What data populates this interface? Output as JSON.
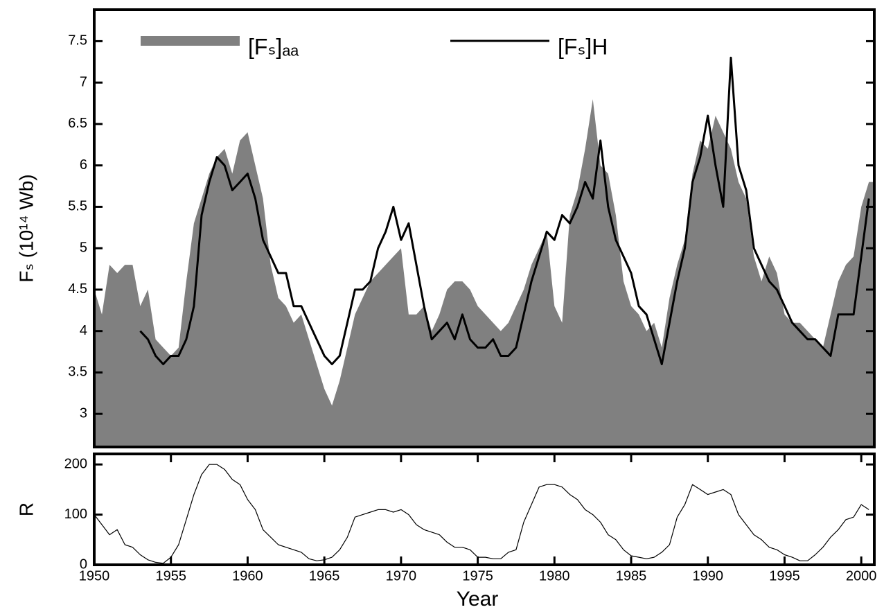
{
  "chart_data": [
    {
      "type": "area",
      "y_label": "Fₛ (10¹⁴ Wb)",
      "x": [
        1950,
        1950.5,
        1951,
        1951.5,
        1952,
        1952.5,
        1953,
        1953.5,
        1954,
        1954.5,
        1955,
        1955.5,
        1956,
        1956.5,
        1957,
        1957.5,
        1958,
        1958.5,
        1959,
        1959.5,
        1960,
        1960.5,
        1961,
        1961.5,
        1962,
        1962.5,
        1963,
        1963.5,
        1964,
        1964.5,
        1965,
        1965.5,
        1966,
        1966.5,
        1967,
        1967.5,
        1968,
        1968.5,
        1969,
        1969.5,
        1970,
        1970.5,
        1971,
        1971.5,
        1972,
        1972.5,
        1973,
        1973.5,
        1974,
        1974.5,
        1975,
        1975.5,
        1976,
        1976.5,
        1977,
        1977.5,
        1978,
        1978.5,
        1979,
        1979.5,
        1980,
        1980.5,
        1981,
        1981.5,
        1982,
        1982.5,
        1983,
        1983.5,
        1984,
        1984.5,
        1985,
        1985.5,
        1986,
        1986.5,
        1987,
        1987.5,
        1988,
        1988.5,
        1989,
        1989.5,
        1990,
        1990.5,
        1991,
        1991.5,
        1992,
        1992.5,
        1993,
        1993.5,
        1994,
        1994.5,
        1995,
        1995.5,
        1996,
        1996.5,
        1997,
        1997.5,
        1998,
        1998.5,
        1999,
        1999.5,
        2000,
        2000.5
      ],
      "series": [
        {
          "name": "[Fₛ]ₐₐ",
          "color": "#808080",
          "style": "area",
          "values": [
            4.5,
            4.2,
            4.8,
            4.7,
            4.8,
            4.8,
            4.3,
            4.5,
            3.9,
            3.8,
            3.7,
            3.8,
            4.6,
            5.3,
            5.6,
            5.9,
            6.1,
            6.2,
            5.9,
            6.3,
            6.4,
            6.0,
            5.6,
            4.8,
            4.4,
            4.3,
            4.1,
            4.2,
            3.9,
            3.6,
            3.3,
            3.1,
            3.4,
            3.8,
            4.2,
            4.4,
            4.6,
            4.7,
            4.8,
            4.9,
            5.0,
            4.2,
            4.2,
            4.3,
            4.0,
            4.2,
            4.5,
            4.6,
            4.6,
            4.5,
            4.3,
            4.2,
            4.1,
            4.0,
            4.1,
            4.3,
            4.5,
            4.8,
            5.0,
            5.2,
            4.3,
            4.1,
            5.4,
            5.7,
            6.2,
            6.8,
            6.0,
            5.9,
            5.4,
            4.6,
            4.3,
            4.2,
            4.0,
            4.1,
            3.8,
            4.4,
            4.8,
            5.1,
            5.9,
            6.3,
            6.2,
            6.6,
            6.4,
            6.2,
            5.8,
            5.6,
            4.9,
            4.6,
            4.9,
            4.7,
            4.2,
            4.1,
            4.1,
            4.0,
            3.9,
            3.8,
            4.2,
            4.6,
            4.8,
            4.9,
            5.5,
            5.8
          ]
        },
        {
          "name": "[Fₛ]H",
          "color": "#000000",
          "style": "line",
          "values": [
            null,
            null,
            null,
            null,
            null,
            null,
            4.0,
            3.9,
            3.7,
            3.6,
            3.7,
            3.7,
            3.9,
            4.3,
            5.4,
            5.8,
            6.1,
            6.0,
            5.7,
            5.8,
            5.9,
            5.6,
            5.1,
            4.9,
            4.7,
            4.7,
            4.3,
            4.3,
            4.1,
            3.9,
            3.7,
            3.6,
            3.7,
            4.1,
            4.5,
            4.5,
            4.6,
            5.0,
            5.2,
            5.5,
            5.1,
            5.3,
            4.8,
            4.3,
            3.9,
            4.0,
            4.1,
            3.9,
            4.2,
            3.9,
            3.8,
            3.8,
            3.9,
            3.7,
            3.7,
            3.8,
            4.2,
            4.6,
            4.9,
            5.2,
            5.1,
            5.4,
            5.3,
            5.5,
            5.8,
            5.6,
            6.3,
            5.5,
            5.1,
            4.9,
            4.7,
            4.3,
            4.2,
            3.9,
            3.6,
            4.1,
            4.6,
            5.0,
            5.8,
            6.1,
            6.6,
            6.0,
            5.5,
            7.3,
            6.0,
            5.7,
            5.0,
            4.8,
            4.6,
            4.5,
            4.3,
            4.1,
            4.0,
            3.9,
            3.9,
            3.8,
            3.7,
            4.2,
            4.2,
            4.2,
            4.9,
            5.6
          ]
        }
      ],
      "xlim": [
        1950,
        2000.85
      ],
      "ylim": [
        2.6,
        7.88
      ],
      "yticks": [
        3,
        3.5,
        4,
        4.5,
        5,
        5.5,
        6,
        6.5,
        7,
        7.5
      ]
    },
    {
      "type": "line",
      "y_label": "R",
      "x_label": "Year",
      "x": [
        1950,
        1950.5,
        1951,
        1951.5,
        1952,
        1952.5,
        1953,
        1953.5,
        1954,
        1954.5,
        1955,
        1955.5,
        1956,
        1956.5,
        1957,
        1957.5,
        1958,
        1958.5,
        1959,
        1959.5,
        1960,
        1960.5,
        1961,
        1961.5,
        1962,
        1962.5,
        1963,
        1963.5,
        1964,
        1964.5,
        1965,
        1965.5,
        1966,
        1966.5,
        1967,
        1967.5,
        1968,
        1968.5,
        1969,
        1969.5,
        1970,
        1970.5,
        1971,
        1971.5,
        1972,
        1972.5,
        1973,
        1973.5,
        1974,
        1974.5,
        1975,
        1975.5,
        1976,
        1976.5,
        1977,
        1977.5,
        1978,
        1978.5,
        1979,
        1979.5,
        1980,
        1980.5,
        1981,
        1981.5,
        1982,
        1982.5,
        1983,
        1983.5,
        1984,
        1984.5,
        1985,
        1985.5,
        1986,
        1986.5,
        1987,
        1987.5,
        1988,
        1988.5,
        1989,
        1989.5,
        1990,
        1990.5,
        1991,
        1991.5,
        1992,
        1992.5,
        1993,
        1993.5,
        1994,
        1994.5,
        1995,
        1995.5,
        1996,
        1996.5,
        1997,
        1997.5,
        1998,
        1998.5,
        1999,
        1999.5,
        2000,
        2000.5
      ],
      "series": [
        {
          "color": "#000000",
          "values": [
            100,
            80,
            60,
            70,
            40,
            35,
            20,
            10,
            5,
            3,
            15,
            40,
            90,
            140,
            180,
            200,
            200,
            190,
            170,
            160,
            130,
            110,
            70,
            55,
            40,
            35,
            30,
            25,
            12,
            8,
            10,
            15,
            30,
            55,
            95,
            100,
            105,
            110,
            110,
            105,
            110,
            100,
            80,
            70,
            65,
            60,
            45,
            35,
            35,
            30,
            15,
            15,
            12,
            12,
            25,
            30,
            85,
            120,
            155,
            160,
            160,
            155,
            140,
            130,
            110,
            100,
            85,
            60,
            50,
            30,
            18,
            15,
            12,
            15,
            25,
            40,
            95,
            120,
            160,
            150,
            140,
            145,
            150,
            140,
            100,
            80,
            60,
            50,
            35,
            30,
            20,
            15,
            8,
            8,
            20,
            35,
            55,
            70,
            90,
            95,
            120,
            110
          ]
        }
      ],
      "xlim": [
        1950,
        2000.85
      ],
      "ylim": [
        0,
        221
      ],
      "yticks": [
        0,
        100,
        200
      ],
      "xticks": [
        1950,
        1955,
        1960,
        1965,
        1970,
        1975,
        1980,
        1985,
        1990,
        1995,
        2000
      ]
    }
  ]
}
